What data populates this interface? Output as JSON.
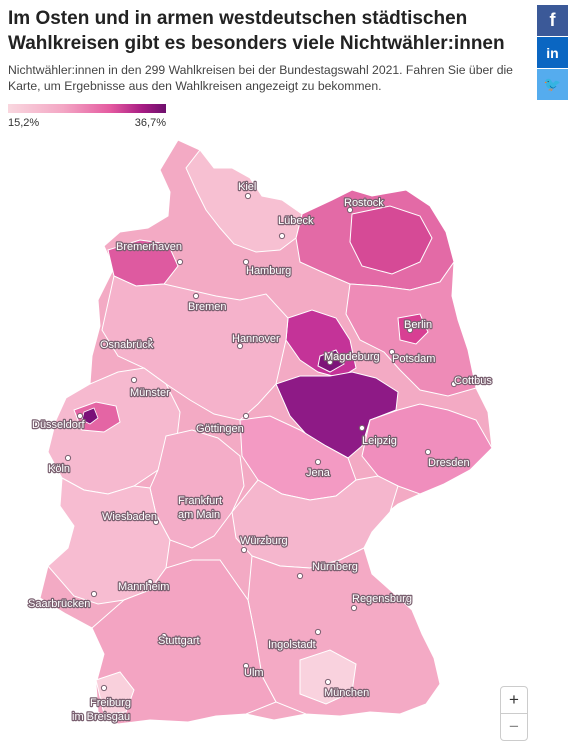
{
  "header": {
    "title": "Im Osten und in armen westdeutschen städtischen Wahlkreisen gibt es besonders viele Nichtwähler:innen",
    "subtitle": "Nichtwähler:innen in den 299 Wahlkreisen bei der Bundestagswahl 2021. Fahren Sie über die Karte, um Ergebnisse aus den Wahlkreisen angezeigt zu bekommen."
  },
  "legend": {
    "min": "15,2%",
    "max": "36,7%",
    "colors": [
      "#f9d7df",
      "#f3a6c4",
      "#e45aa0",
      "#a71c83",
      "#6e0f6d"
    ]
  },
  "share": {
    "facebook": "f",
    "linkedin": "in",
    "twitter": "🐦"
  },
  "zoom": {
    "in": "+",
    "out": "−"
  },
  "cities": [
    {
      "name": "Kiel"
    },
    {
      "name": "Rostock"
    },
    {
      "name": "Lübeck"
    },
    {
      "name": "Bremerhaven"
    },
    {
      "name": "Hamburg"
    },
    {
      "name": "Bremen"
    },
    {
      "name": "Berlin"
    },
    {
      "name": "Osnabrück"
    },
    {
      "name": "Hannover"
    },
    {
      "name": "Magdeburg"
    },
    {
      "name": "Potsdam"
    },
    {
      "name": "Münster"
    },
    {
      "name": "Cottbus"
    },
    {
      "name": "Düsseldorf"
    },
    {
      "name": "Göttingen"
    },
    {
      "name": "Leipzig"
    },
    {
      "name": "Dresden"
    },
    {
      "name": "Köln"
    },
    {
      "name": "Jena"
    },
    {
      "name": "Frankfurt"
    },
    {
      "name": "am Main"
    },
    {
      "name": "Wiesbaden"
    },
    {
      "name": "Würzburg"
    },
    {
      "name": "Nürnberg"
    },
    {
      "name": "Mannheim"
    },
    {
      "name": "Regensburg"
    },
    {
      "name": "Saarbrücken"
    },
    {
      "name": "Stuttgart"
    },
    {
      "name": "Ingolstadt"
    },
    {
      "name": "Ulm"
    },
    {
      "name": "München"
    },
    {
      "name": "Freiburg"
    },
    {
      "name": "im Breisgau"
    }
  ]
}
